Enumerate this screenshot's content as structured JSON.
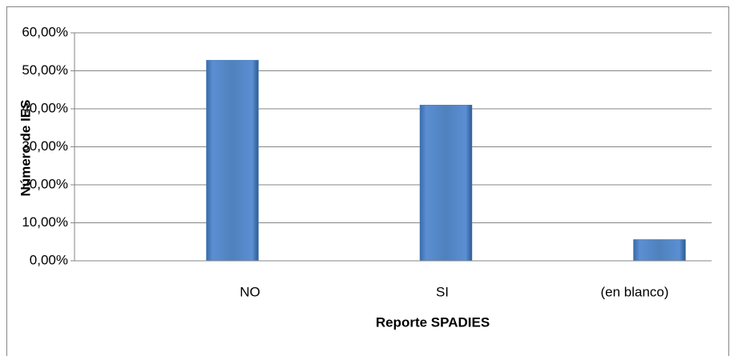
{
  "chart_data": {
    "type": "bar",
    "categories": [
      "NO",
      "SI",
      "(en blanco)"
    ],
    "values": [
      52.8,
      41.0,
      5.6
    ],
    "color": "#4f81bd",
    "xlabel": "Reporte SPADIES",
    "ylabel": "Número de IES",
    "ylim": [
      0,
      60
    ],
    "yticks": [
      {
        "value": 0,
        "label": "0,00%"
      },
      {
        "value": 10,
        "label": "10,00%"
      },
      {
        "value": 20,
        "label": "20,00%"
      },
      {
        "value": 30,
        "label": "30,00%"
      },
      {
        "value": 40,
        "label": "40,00%"
      },
      {
        "value": 50,
        "label": "50,00%"
      },
      {
        "value": 60,
        "label": "60,00%"
      }
    ],
    "grid": true
  }
}
